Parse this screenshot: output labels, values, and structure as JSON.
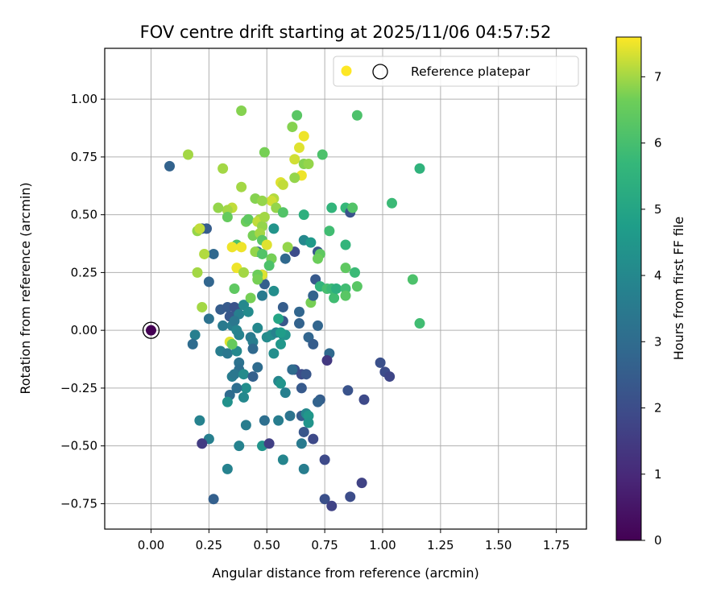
{
  "chart_data": {
    "type": "scatter",
    "title": "FOV centre drift starting at 2025/11/06 04:57:52",
    "xlabel": "Angular distance from reference (arcmin)",
    "ylabel": "Rotation from reference (arcmin)",
    "xlim": [
      -0.2,
      1.88
    ],
    "ylim": [
      -0.86,
      1.22
    ],
    "xticks": [
      "0.00",
      "0.25",
      "0.50",
      "0.75",
      "1.00",
      "1.25",
      "1.50",
      "1.75"
    ],
    "yticks": [
      "−0.75",
      "−0.50",
      "−0.25",
      "0.00",
      "0.25",
      "0.50",
      "0.75",
      "1.00"
    ],
    "grid": true,
    "legend": {
      "placement": "top-right",
      "entries": [
        "",
        "Reference platepar"
      ]
    },
    "colorbar": {
      "label": "Hours from first FF file",
      "colormap": "viridis",
      "range": [
        0,
        7.6
      ],
      "ticks": [
        "0",
        "1",
        "2",
        "3",
        "4",
        "5",
        "6",
        "7"
      ]
    },
    "reference_point": {
      "x": 0.0,
      "y": 0.0,
      "hours": 0.0
    },
    "points": [
      [
        0.08,
        0.71,
        2.7
      ],
      [
        0.22,
        0.44,
        2.3
      ],
      [
        0.24,
        0.44,
        2.5
      ],
      [
        0.27,
        0.33,
        2.9
      ],
      [
        0.25,
        0.21,
        2.8
      ],
      [
        0.3,
        0.09,
        2.5
      ],
      [
        0.33,
        0.1,
        2.4
      ],
      [
        0.34,
        0.06,
        2.3
      ],
      [
        0.37,
        0.09,
        2.6
      ],
      [
        0.36,
        0.1,
        2.2
      ],
      [
        0.38,
        0.07,
        3.7
      ],
      [
        0.25,
        0.05,
        3.2
      ],
      [
        0.31,
        0.02,
        3.5
      ],
      [
        0.35,
        0.02,
        3.6
      ],
      [
        0.36,
        0.04,
        3.4
      ],
      [
        0.37,
        0.0,
        3.9
      ],
      [
        0.4,
        0.11,
        4.0
      ],
      [
        0.42,
        0.08,
        4.1
      ],
      [
        0.38,
        -0.02,
        3.8
      ],
      [
        0.43,
        -0.03,
        3.5
      ],
      [
        0.44,
        -0.05,
        3.6
      ],
      [
        0.44,
        -0.08,
        2.9
      ],
      [
        0.3,
        -0.09,
        3.6
      ],
      [
        0.33,
        -0.1,
        3.4
      ],
      [
        0.37,
        -0.09,
        4.0
      ],
      [
        0.38,
        -0.14,
        3.2
      ],
      [
        0.38,
        -0.17,
        3.1
      ],
      [
        0.35,
        -0.2,
        3.6
      ],
      [
        0.36,
        -0.19,
        3.4
      ],
      [
        0.4,
        -0.19,
        4.1
      ],
      [
        0.41,
        -0.25,
        4.2
      ],
      [
        0.37,
        -0.25,
        3.1
      ],
      [
        0.34,
        -0.28,
        3.0
      ],
      [
        0.4,
        -0.29,
        4.0
      ],
      [
        0.33,
        -0.31,
        4.3
      ],
      [
        0.21,
        -0.39,
        3.8
      ],
      [
        0.25,
        -0.47,
        3.7
      ],
      [
        0.22,
        -0.49,
        1.5
      ],
      [
        0.19,
        -0.02,
        3.7
      ],
      [
        0.18,
        -0.06,
        3.0
      ],
      [
        0.33,
        -0.6,
        3.8
      ],
      [
        0.38,
        -0.5,
        3.8
      ],
      [
        0.27,
        -0.73,
        2.6
      ],
      [
        0.41,
        -0.41,
        3.6
      ],
      [
        0.44,
        -0.2,
        2.6
      ],
      [
        0.46,
        -0.16,
        3.0
      ],
      [
        0.46,
        0.01,
        4.0
      ],
      [
        0.48,
        0.15,
        3.5
      ],
      [
        0.49,
        0.2,
        2.6
      ],
      [
        0.48,
        0.24,
        2.9
      ],
      [
        0.46,
        0.34,
        2.9
      ],
      [
        0.5,
        -0.03,
        4.1
      ],
      [
        0.52,
        -0.02,
        4.2
      ],
      [
        0.54,
        -0.01,
        3.8
      ],
      [
        0.57,
        -0.02,
        4.0
      ],
      [
        0.58,
        -0.02,
        4.4
      ],
      [
        0.53,
        -0.1,
        4.2
      ],
      [
        0.56,
        -0.06,
        4.5
      ],
      [
        0.55,
        -0.22,
        3.9
      ],
      [
        0.56,
        -0.23,
        4.4
      ],
      [
        0.58,
        -0.27,
        3.7
      ],
      [
        0.49,
        -0.39,
        3.1
      ],
      [
        0.55,
        -0.39,
        3.6
      ],
      [
        0.6,
        -0.37,
        3.3
      ],
      [
        0.65,
        -0.37,
        2.5
      ],
      [
        0.67,
        -0.36,
        4.0
      ],
      [
        0.68,
        -0.37,
        4.5
      ],
      [
        0.68,
        -0.4,
        4.4
      ],
      [
        0.65,
        -0.49,
        3.5
      ],
      [
        0.66,
        -0.44,
        2.3
      ],
      [
        0.7,
        -0.47,
        1.9
      ],
      [
        0.66,
        -0.6,
        3.6
      ],
      [
        0.57,
        -0.56,
        3.9
      ],
      [
        0.48,
        -0.5,
        4.4
      ],
      [
        0.51,
        -0.49,
        1.6
      ],
      [
        0.61,
        -0.17,
        1.8
      ],
      [
        0.62,
        -0.17,
        2.1
      ],
      [
        0.65,
        -0.19,
        2.0
      ],
      [
        0.67,
        -0.19,
        2.3
      ],
      [
        0.65,
        -0.25,
        2.4
      ],
      [
        0.64,
        0.03,
        2.7
      ],
      [
        0.68,
        -0.03,
        2.8
      ],
      [
        0.7,
        -0.06,
        2.5
      ],
      [
        0.72,
        0.02,
        2.8
      ],
      [
        0.57,
        0.04,
        2.3
      ],
      [
        0.57,
        0.1,
        2.5
      ],
      [
        0.64,
        0.08,
        2.8
      ],
      [
        0.73,
        -0.3,
        2.5
      ],
      [
        0.72,
        -0.31,
        2.7
      ],
      [
        0.77,
        -0.1,
        2.9
      ],
      [
        0.75,
        -0.56,
        1.9
      ],
      [
        0.75,
        -0.73,
        2.1
      ],
      [
        0.78,
        -0.76,
        1.7
      ],
      [
        0.76,
        -0.13,
        1.4
      ],
      [
        0.85,
        -0.26,
        2.2
      ],
      [
        0.86,
        -0.72,
        2.0
      ],
      [
        0.91,
        -0.66,
        1.7
      ],
      [
        0.92,
        -0.3,
        1.9
      ],
      [
        0.99,
        -0.14,
        2.1
      ],
      [
        1.01,
        -0.18,
        2.0
      ],
      [
        1.03,
        -0.2,
        1.8
      ],
      [
        0.53,
        0.17,
        4.2
      ],
      [
        0.53,
        0.44,
        4.4
      ],
      [
        0.52,
        0.31,
        4.8
      ],
      [
        0.55,
        0.05,
        5.0
      ],
      [
        0.56,
        -0.01,
        4.7
      ],
      [
        0.58,
        0.31,
        2.9
      ],
      [
        0.62,
        0.34,
        2.0
      ],
      [
        0.66,
        0.39,
        4.0
      ],
      [
        0.69,
        0.38,
        4.6
      ],
      [
        0.72,
        0.34,
        2.3
      ],
      [
        0.73,
        0.33,
        6.4
      ],
      [
        0.72,
        0.31,
        6.6
      ],
      [
        0.66,
        0.5,
        5.4
      ],
      [
        0.69,
        0.12,
        6.7
      ],
      [
        0.71,
        0.22,
        2.4
      ],
      [
        0.7,
        0.15,
        2.7
      ],
      [
        0.73,
        0.19,
        5.6
      ],
      [
        0.76,
        0.18,
        6.0
      ],
      [
        0.77,
        0.43,
        5.9
      ],
      [
        0.78,
        0.53,
        5.6
      ],
      [
        0.78,
        0.18,
        5.8
      ],
      [
        0.79,
        0.14,
        5.9
      ],
      [
        0.8,
        0.18,
        5.4
      ],
      [
        0.84,
        0.37,
        5.6
      ],
      [
        0.84,
        0.53,
        5.7
      ],
      [
        0.84,
        0.18,
        5.9
      ],
      [
        0.84,
        0.15,
        6.3
      ],
      [
        0.84,
        0.27,
        6.4
      ],
      [
        0.86,
        0.51,
        2.2
      ],
      [
        0.87,
        0.53,
        6.2
      ],
      [
        0.88,
        0.25,
        5.8
      ],
      [
        0.89,
        0.19,
        6.3
      ],
      [
        0.89,
        0.93,
        6.1
      ],
      [
        1.04,
        0.55,
        5.8
      ],
      [
        1.13,
        0.22,
        6.1
      ],
      [
        1.16,
        0.7,
        5.5
      ],
      [
        1.16,
        0.03,
        5.9
      ],
      [
        0.74,
        0.76,
        6.1
      ],
      [
        0.63,
        0.93,
        6.3
      ],
      [
        0.61,
        0.88,
        6.8
      ],
      [
        0.66,
        0.84,
        7.5
      ],
      [
        0.64,
        0.79,
        7.4
      ],
      [
        0.62,
        0.74,
        7.3
      ],
      [
        0.66,
        0.72,
        6.8
      ],
      [
        0.68,
        0.72,
        6.9
      ],
      [
        0.65,
        0.67,
        7.5
      ],
      [
        0.62,
        0.66,
        6.9
      ],
      [
        0.56,
        0.64,
        7.4
      ],
      [
        0.57,
        0.63,
        7.2
      ],
      [
        0.53,
        0.57,
        7.1
      ],
      [
        0.52,
        0.56,
        7.3
      ],
      [
        0.54,
        0.53,
        6.9
      ],
      [
        0.57,
        0.51,
        6.2
      ],
      [
        0.49,
        0.77,
        6.7
      ],
      [
        0.39,
        0.95,
        6.8
      ],
      [
        0.31,
        0.7,
        7.0
      ],
      [
        0.39,
        0.62,
        7.0
      ],
      [
        0.45,
        0.57,
        6.8
      ],
      [
        0.48,
        0.56,
        6.9
      ],
      [
        0.35,
        0.53,
        7.2
      ],
      [
        0.33,
        0.52,
        7.0
      ],
      [
        0.29,
        0.53,
        6.9
      ],
      [
        0.33,
        0.49,
        6.5
      ],
      [
        0.41,
        0.47,
        6.6
      ],
      [
        0.42,
        0.48,
        6.4
      ],
      [
        0.47,
        0.48,
        7.0
      ],
      [
        0.46,
        0.47,
        7.2
      ],
      [
        0.48,
        0.45,
        6.9
      ],
      [
        0.49,
        0.49,
        7.0
      ],
      [
        0.2,
        0.43,
        6.9
      ],
      [
        0.21,
        0.44,
        7.2
      ],
      [
        0.16,
        0.76,
        7.0
      ],
      [
        0.44,
        0.41,
        6.7
      ],
      [
        0.47,
        0.42,
        7.0
      ],
      [
        0.48,
        0.39,
        6.3
      ],
      [
        0.5,
        0.37,
        7.4
      ],
      [
        0.37,
        0.37,
        6.1
      ],
      [
        0.39,
        0.36,
        7.5
      ],
      [
        0.35,
        0.36,
        7.5
      ],
      [
        0.45,
        0.34,
        6.9
      ],
      [
        0.59,
        0.36,
        6.9
      ],
      [
        0.23,
        0.33,
        7.1
      ],
      [
        0.48,
        0.33,
        6.2
      ],
      [
        0.52,
        0.31,
        6.7
      ],
      [
        0.51,
        0.28,
        6.1
      ],
      [
        0.37,
        0.27,
        7.5
      ],
      [
        0.4,
        0.25,
        7.0
      ],
      [
        0.2,
        0.25,
        7.0
      ],
      [
        0.48,
        0.24,
        7.4
      ],
      [
        0.46,
        0.24,
        6.6
      ],
      [
        0.46,
        0.22,
        6.7
      ],
      [
        0.36,
        0.18,
        6.4
      ],
      [
        0.43,
        0.14,
        6.7
      ],
      [
        0.22,
        0.1,
        7.0
      ],
      [
        0.34,
        -0.05,
        7.4
      ],
      [
        0.35,
        -0.06,
        6.5
      ],
      [
        0.61,
        -0.17,
        3.0
      ]
    ]
  }
}
